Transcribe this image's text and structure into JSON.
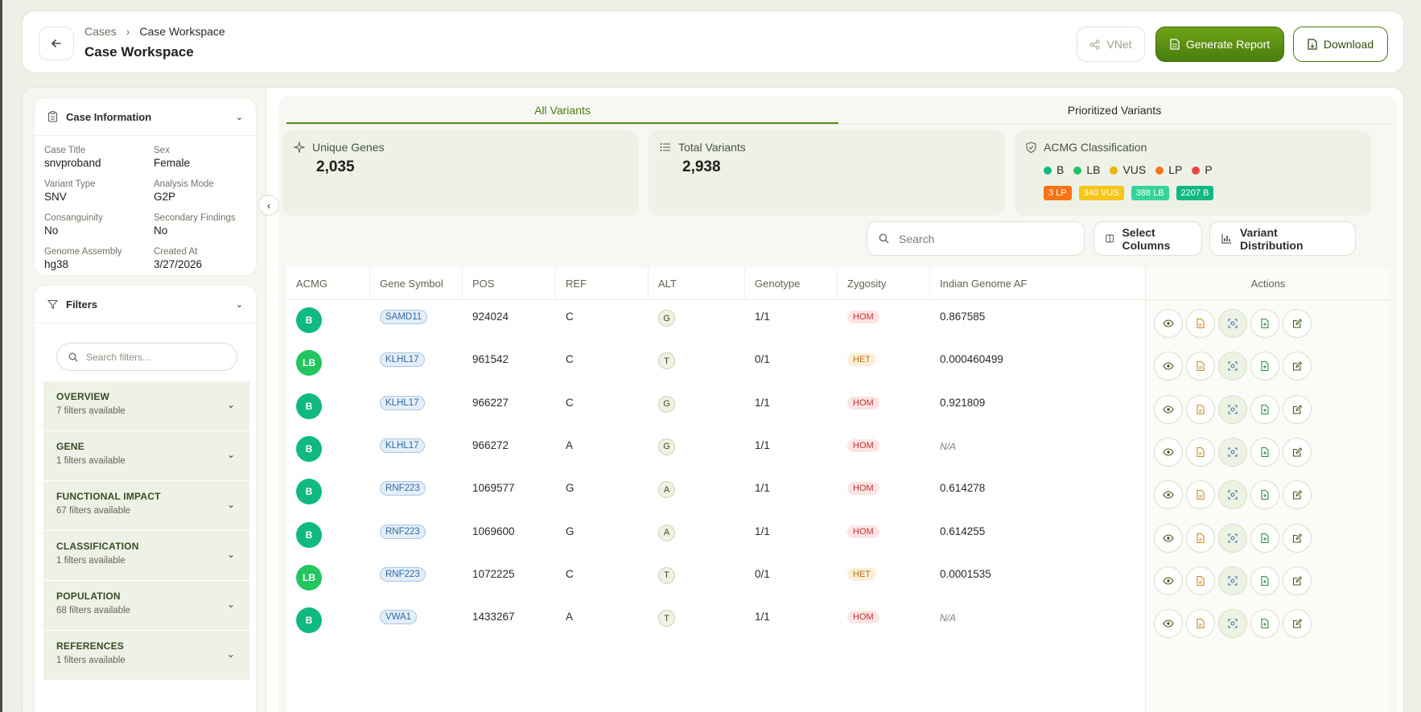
{
  "header": {
    "back_icon": "arrow-left-icon",
    "crumbs": [
      "Cases",
      "Case Workspace"
    ],
    "title": "Case Workspace",
    "buttons": {
      "vnet": "VNet",
      "generate": "Generate Report",
      "download": "Download"
    }
  },
  "case_info": {
    "title": "Case Information",
    "fields": [
      {
        "label": "Case Title",
        "value": "snvproband"
      },
      {
        "label": "Sex",
        "value": "Female"
      },
      {
        "label": "Variant Type",
        "value": "SNV"
      },
      {
        "label": "Analysis Mode",
        "value": "G2P"
      },
      {
        "label": "Consanguinity",
        "value": "No"
      },
      {
        "label": "Secondary Findings",
        "value": "No"
      },
      {
        "label": "Genome Assembly",
        "value": "hg38"
      },
      {
        "label": "Created At",
        "value": "3/27/2026"
      }
    ]
  },
  "filters": {
    "title": "Filters",
    "search_placeholder": "Search filters...",
    "groups": [
      {
        "title": "OVERVIEW",
        "sub": "7 filters available"
      },
      {
        "title": "GENE",
        "sub": "1 filters available"
      },
      {
        "title": "FUNCTIONAL IMPACT",
        "sub": "67 filters available"
      },
      {
        "title": "CLASSIFICATION",
        "sub": "1 filters available"
      },
      {
        "title": "POPULATION",
        "sub": "68 filters available"
      },
      {
        "title": "REFERENCES",
        "sub": "1 filters available"
      }
    ]
  },
  "tabs": [
    "All Variants",
    "Prioritized Variants"
  ],
  "stats": {
    "unique_genes": {
      "label": "Unique Genes",
      "value": "2,035"
    },
    "total_variants": {
      "label": "Total Variants",
      "value": "2,938"
    },
    "acmg": {
      "label": "ACMG Classification",
      "legend": [
        {
          "name": "B",
          "color": "#10b981"
        },
        {
          "name": "LB",
          "color": "#22c55e"
        },
        {
          "name": "VUS",
          "color": "#eab308"
        },
        {
          "name": "LP",
          "color": "#f97316"
        },
        {
          "name": "P",
          "color": "#ef4444"
        }
      ],
      "chips": [
        {
          "text": "3 LP",
          "color": "#f97316"
        },
        {
          "text": "340 VUS",
          "color": "#f5c518"
        },
        {
          "text": "388 LB",
          "color": "#34d399"
        },
        {
          "text": "2207 B",
          "color": "#10b981"
        }
      ]
    }
  },
  "toolbar": {
    "search_placeholder": "Search",
    "select_columns": "Select Columns",
    "variant_distribution": "Variant Distribution"
  },
  "table": {
    "columns": [
      "ACMG",
      "Gene Symbol",
      "POS",
      "REF",
      "ALT",
      "Genotype",
      "Zygosity",
      "Indian Genome AF",
      "Actions"
    ],
    "rows": [
      {
        "acmg": "B",
        "gene": "SAMD11",
        "pos": "924024",
        "ref": "C",
        "alt": "G",
        "gt": "1/1",
        "zyg": "HOM",
        "af": "0.867585"
      },
      {
        "acmg": "LB",
        "gene": "KLHL17",
        "pos": "961542",
        "ref": "C",
        "alt": "T",
        "gt": "0/1",
        "zyg": "HET",
        "af": "0.000460499"
      },
      {
        "acmg": "B",
        "gene": "KLHL17",
        "pos": "966227",
        "ref": "C",
        "alt": "G",
        "gt": "1/1",
        "zyg": "HOM",
        "af": "0.921809"
      },
      {
        "acmg": "B",
        "gene": "KLHL17",
        "pos": "966272",
        "ref": "A",
        "alt": "G",
        "gt": "1/1",
        "zyg": "HOM",
        "af": "N/A"
      },
      {
        "acmg": "B",
        "gene": "RNF223",
        "pos": "1069577",
        "ref": "G",
        "alt": "A",
        "gt": "1/1",
        "zyg": "HOM",
        "af": "0.614278"
      },
      {
        "acmg": "B",
        "gene": "RNF223",
        "pos": "1069600",
        "ref": "G",
        "alt": "A",
        "gt": "1/1",
        "zyg": "HOM",
        "af": "0.614255"
      },
      {
        "acmg": "LB",
        "gene": "RNF223",
        "pos": "1072225",
        "ref": "C",
        "alt": "T",
        "gt": "0/1",
        "zyg": "HET",
        "af": "0.0001535"
      },
      {
        "acmg": "B",
        "gene": "VWA1",
        "pos": "1433267",
        "ref": "A",
        "alt": "T",
        "gt": "1/1",
        "zyg": "HOM",
        "af": "N/A"
      }
    ],
    "row_actions": [
      "eye-icon",
      "file-icon",
      "scan-icon",
      "file-plus-icon",
      "edit-icon"
    ]
  }
}
